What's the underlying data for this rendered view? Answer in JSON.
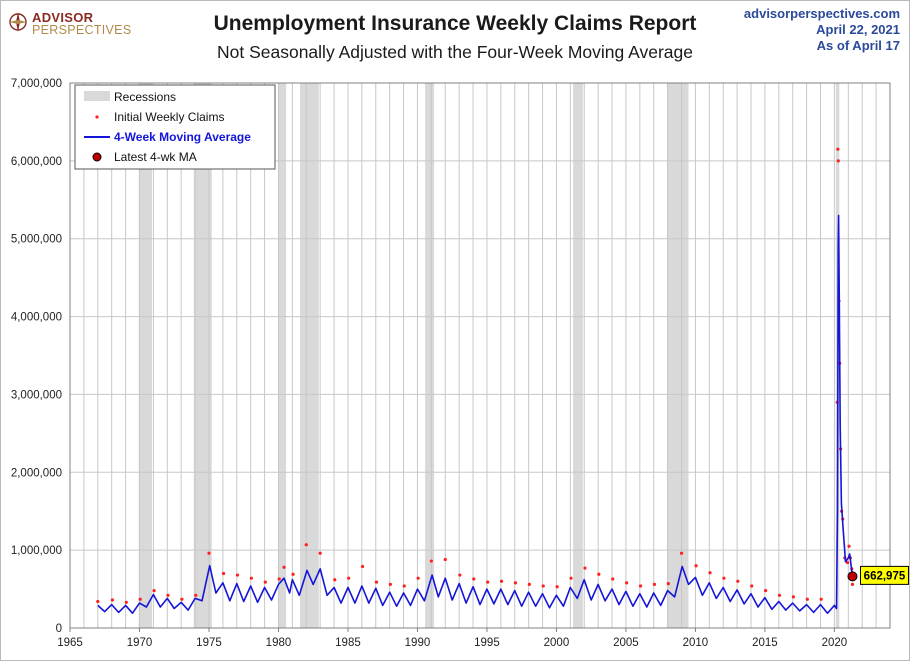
{
  "header": {
    "logo_line1": "ADVISOR",
    "logo_line2": "PERSPECTIVES",
    "title": "Unemployment Insurance Weekly Claims Report",
    "subtitle": "Not Seasonally Adjusted with the Four-Week Moving Average",
    "source_url": "advisorperspectives.com",
    "date_line": "April 22, 2021",
    "as_of_line": "As of April 17"
  },
  "colors": {
    "claims_dot": "#ff2020",
    "moving_avg_line": "#1515d9",
    "latest_marker": "#c00000",
    "recession_band": "#d9d9d9",
    "callout_bg": "#ffff00",
    "grid": "#c8c8c8"
  },
  "chart_data": {
    "type": "line",
    "title": "Unemployment Insurance Weekly Claims Report",
    "subtitle": "Not Seasonally Adjusted with the Four-Week Moving Average",
    "xlim": [
      1965,
      2024
    ],
    "ylim": [
      0,
      7000000
    ],
    "x_ticks": [
      1965,
      1970,
      1975,
      1980,
      1985,
      1990,
      1995,
      2000,
      2005,
      2010,
      2015,
      2020
    ],
    "y_ticks": [
      "0",
      "1,000,000",
      "2,000,000",
      "3,000,000",
      "4,000,000",
      "5,000,000",
      "6,000,000",
      "7,000,000"
    ],
    "y_tick_values": [
      0,
      1000000,
      2000000,
      3000000,
      4000000,
      5000000,
      6000000,
      7000000
    ],
    "grid": true,
    "legend_position": "top-left",
    "legend": {
      "recessions": "Recessions",
      "claims": "Initial Weekly Claims",
      "moving_avg": "4-Week Moving Average",
      "latest": "Latest 4-wk MA"
    },
    "recessions": [
      [
        1969.95,
        1970.9
      ],
      [
        1973.9,
        1975.2
      ],
      [
        1980.0,
        1980.55
      ],
      [
        1981.55,
        1982.9
      ],
      [
        1990.55,
        1991.2
      ],
      [
        2001.2,
        2001.9
      ],
      [
        2007.95,
        2009.5
      ],
      [
        2020.1,
        2020.35
      ]
    ],
    "series": [
      {
        "name": "4-Week Moving Average",
        "type": "line",
        "points": [
          [
            1967.0,
            290000
          ],
          [
            1967.5,
            210000
          ],
          [
            1968.0,
            300000
          ],
          [
            1968.5,
            200000
          ],
          [
            1969.0,
            290000
          ],
          [
            1969.5,
            190000
          ],
          [
            1970.0,
            320000
          ],
          [
            1970.5,
            270000
          ],
          [
            1971.0,
            430000
          ],
          [
            1971.5,
            270000
          ],
          [
            1972.0,
            380000
          ],
          [
            1972.5,
            250000
          ],
          [
            1973.0,
            330000
          ],
          [
            1973.5,
            230000
          ],
          [
            1974.0,
            380000
          ],
          [
            1974.5,
            350000
          ],
          [
            1975.05,
            800000
          ],
          [
            1975.5,
            450000
          ],
          [
            1976.0,
            580000
          ],
          [
            1976.5,
            350000
          ],
          [
            1977.0,
            570000
          ],
          [
            1977.5,
            340000
          ],
          [
            1978.0,
            540000
          ],
          [
            1978.5,
            330000
          ],
          [
            1979.0,
            520000
          ],
          [
            1979.5,
            360000
          ],
          [
            1980.0,
            560000
          ],
          [
            1980.4,
            640000
          ],
          [
            1980.8,
            450000
          ],
          [
            1981.0,
            620000
          ],
          [
            1981.5,
            420000
          ],
          [
            1982.05,
            740000
          ],
          [
            1982.5,
            560000
          ],
          [
            1983.0,
            760000
          ],
          [
            1983.5,
            420000
          ],
          [
            1984.0,
            520000
          ],
          [
            1984.5,
            320000
          ],
          [
            1985.0,
            520000
          ],
          [
            1985.5,
            320000
          ],
          [
            1986.0,
            540000
          ],
          [
            1986.5,
            320000
          ],
          [
            1987.0,
            510000
          ],
          [
            1987.5,
            290000
          ],
          [
            1988.0,
            460000
          ],
          [
            1988.5,
            280000
          ],
          [
            1989.0,
            450000
          ],
          [
            1989.5,
            290000
          ],
          [
            1990.0,
            500000
          ],
          [
            1990.5,
            350000
          ],
          [
            1991.05,
            680000
          ],
          [
            1991.5,
            400000
          ],
          [
            1992.0,
            640000
          ],
          [
            1992.5,
            360000
          ],
          [
            1993.0,
            570000
          ],
          [
            1993.5,
            320000
          ],
          [
            1994.0,
            530000
          ],
          [
            1994.5,
            300000
          ],
          [
            1995.0,
            500000
          ],
          [
            1995.5,
            310000
          ],
          [
            1996.0,
            500000
          ],
          [
            1996.5,
            300000
          ],
          [
            1997.0,
            480000
          ],
          [
            1997.5,
            280000
          ],
          [
            1998.0,
            460000
          ],
          [
            1998.5,
            280000
          ],
          [
            1999.0,
            440000
          ],
          [
            1999.5,
            260000
          ],
          [
            2000.0,
            420000
          ],
          [
            2000.5,
            280000
          ],
          [
            2001.0,
            520000
          ],
          [
            2001.5,
            380000
          ],
          [
            2002.0,
            620000
          ],
          [
            2002.5,
            360000
          ],
          [
            2003.0,
            560000
          ],
          [
            2003.5,
            350000
          ],
          [
            2004.0,
            500000
          ],
          [
            2004.5,
            300000
          ],
          [
            2005.0,
            470000
          ],
          [
            2005.5,
            280000
          ],
          [
            2006.0,
            440000
          ],
          [
            2006.5,
            270000
          ],
          [
            2007.0,
            450000
          ],
          [
            2007.5,
            290000
          ],
          [
            2008.0,
            480000
          ],
          [
            2008.5,
            400000
          ],
          [
            2009.05,
            790000
          ],
          [
            2009.5,
            560000
          ],
          [
            2010.0,
            650000
          ],
          [
            2010.5,
            420000
          ],
          [
            2011.0,
            580000
          ],
          [
            2011.5,
            380000
          ],
          [
            2012.0,
            520000
          ],
          [
            2012.5,
            340000
          ],
          [
            2013.0,
            490000
          ],
          [
            2013.5,
            310000
          ],
          [
            2014.0,
            440000
          ],
          [
            2014.5,
            270000
          ],
          [
            2015.0,
            390000
          ],
          [
            2015.5,
            240000
          ],
          [
            2016.0,
            340000
          ],
          [
            2016.5,
            230000
          ],
          [
            2017.0,
            320000
          ],
          [
            2017.5,
            220000
          ],
          [
            2018.0,
            300000
          ],
          [
            2018.5,
            200000
          ],
          [
            2019.0,
            300000
          ],
          [
            2019.5,
            190000
          ],
          [
            2020.0,
            290000
          ],
          [
            2020.15,
            250000
          ],
          [
            2020.22,
            1500000
          ],
          [
            2020.27,
            4900000
          ],
          [
            2020.3,
            5300000
          ],
          [
            2020.35,
            4200000
          ],
          [
            2020.42,
            2600000
          ],
          [
            2020.5,
            1600000
          ],
          [
            2020.62,
            1300000
          ],
          [
            2020.8,
            850000
          ],
          [
            2021.0,
            900000
          ],
          [
            2021.1,
            950000
          ],
          [
            2021.2,
            800000
          ],
          [
            2021.3,
            662975
          ]
        ]
      },
      {
        "name": "Initial Weekly Claims",
        "type": "scatter",
        "points": [
          [
            1967.0,
            340000
          ],
          [
            1968.05,
            360000
          ],
          [
            1969.05,
            330000
          ],
          [
            1970.05,
            370000
          ],
          [
            1971.05,
            480000
          ],
          [
            1972.05,
            420000
          ],
          [
            1973.05,
            370000
          ],
          [
            1974.05,
            420000
          ],
          [
            1975.0,
            960000
          ],
          [
            1976.05,
            700000
          ],
          [
            1977.05,
            680000
          ],
          [
            1978.05,
            640000
          ],
          [
            1979.05,
            590000
          ],
          [
            1980.05,
            630000
          ],
          [
            1980.4,
            780000
          ],
          [
            1981.05,
            690000
          ],
          [
            1982.0,
            1070000
          ],
          [
            1983.0,
            960000
          ],
          [
            1984.05,
            620000
          ],
          [
            1985.05,
            640000
          ],
          [
            1986.05,
            790000
          ],
          [
            1987.05,
            590000
          ],
          [
            1988.05,
            560000
          ],
          [
            1989.05,
            540000
          ],
          [
            1990.05,
            640000
          ],
          [
            1991.0,
            860000
          ],
          [
            1992.0,
            880000
          ],
          [
            1993.05,
            680000
          ],
          [
            1994.05,
            630000
          ],
          [
            1995.05,
            590000
          ],
          [
            1996.05,
            600000
          ],
          [
            1997.05,
            580000
          ],
          [
            1998.05,
            560000
          ],
          [
            1999.05,
            540000
          ],
          [
            2000.05,
            530000
          ],
          [
            2001.05,
            640000
          ],
          [
            2002.05,
            770000
          ],
          [
            2003.05,
            690000
          ],
          [
            2004.05,
            630000
          ],
          [
            2005.05,
            580000
          ],
          [
            2006.05,
            540000
          ],
          [
            2007.05,
            560000
          ],
          [
            2008.05,
            570000
          ],
          [
            2009.0,
            960000
          ],
          [
            2010.05,
            800000
          ],
          [
            2011.05,
            710000
          ],
          [
            2012.05,
            640000
          ],
          [
            2013.05,
            600000
          ],
          [
            2014.05,
            540000
          ],
          [
            2015.05,
            480000
          ],
          [
            2016.05,
            420000
          ],
          [
            2017.05,
            400000
          ],
          [
            2018.05,
            370000
          ],
          [
            2019.05,
            370000
          ],
          [
            2020.2,
            2900000
          ],
          [
            2020.25,
            6150000
          ],
          [
            2020.28,
            6000000
          ],
          [
            2020.33,
            4200000
          ],
          [
            2020.38,
            3400000
          ],
          [
            2020.45,
            2300000
          ],
          [
            2020.52,
            1500000
          ],
          [
            2020.6,
            1400000
          ],
          [
            2020.75,
            900000
          ],
          [
            2020.95,
            840000
          ],
          [
            2021.05,
            1050000
          ],
          [
            2021.15,
            900000
          ],
          [
            2021.25,
            760000
          ],
          [
            2021.3,
            560000
          ]
        ]
      }
    ],
    "latest": {
      "x": 2021.3,
      "y": 662975,
      "label": "662,975"
    }
  }
}
